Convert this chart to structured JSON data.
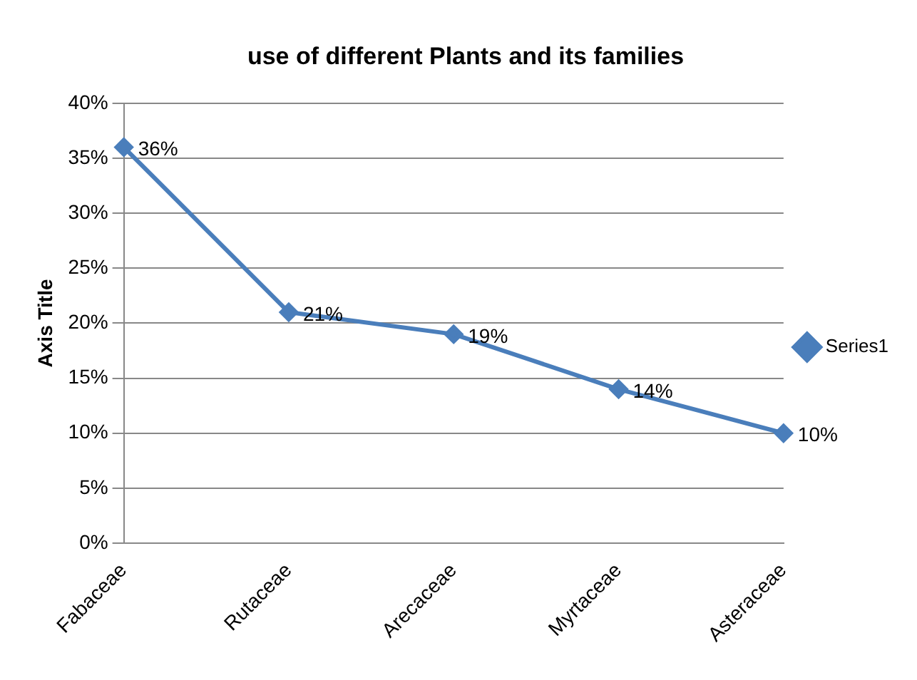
{
  "chart_data": {
    "type": "line",
    "title": "use of different Plants and its families",
    "ylabel": "Axis Title",
    "categories": [
      "Fabaceae",
      "Rutaceae",
      "Arecaceae",
      "Myrtaceae",
      "Asteraceae"
    ],
    "series": [
      {
        "name": "Series1",
        "color": "#4a7ebb",
        "values": [
          36,
          21,
          19,
          14,
          10
        ],
        "value_labels": [
          "36%",
          "21%",
          "19%",
          "14%",
          "10%"
        ]
      }
    ],
    "ylim": [
      0,
      40
    ],
    "yticks": [
      {
        "value": 0,
        "label": "0%"
      },
      {
        "value": 5,
        "label": "5%"
      },
      {
        "value": 10,
        "label": "10%"
      },
      {
        "value": 15,
        "label": "15%"
      },
      {
        "value": 20,
        "label": "20%"
      },
      {
        "value": 25,
        "label": "25%"
      },
      {
        "value": 30,
        "label": "30%"
      },
      {
        "value": 35,
        "label": "35%"
      },
      {
        "value": 40,
        "label": "40%"
      }
    ],
    "grid": "y",
    "legend": "right",
    "marker": "diamond",
    "line_style": "solid"
  }
}
